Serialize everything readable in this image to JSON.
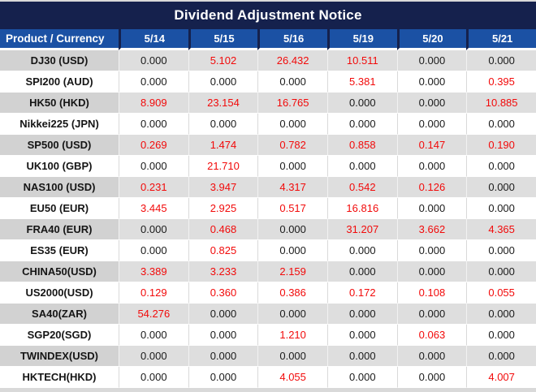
{
  "title": "Dividend Adjustment Notice",
  "table": {
    "product_header": "Product / Currency",
    "date_headers": [
      "5/14",
      "5/15",
      "5/16",
      "5/19",
      "5/20",
      "5/21"
    ],
    "rows": [
      {
        "product": "DJ30 (USD)",
        "values": [
          "0.000",
          "5.102",
          "26.432",
          "10.511",
          "0.000",
          "0.000"
        ]
      },
      {
        "product": "SPI200 (AUD)",
        "values": [
          "0.000",
          "0.000",
          "0.000",
          "5.381",
          "0.000",
          "0.395"
        ]
      },
      {
        "product": "HK50 (HKD)",
        "values": [
          "8.909",
          "23.154",
          "16.765",
          "0.000",
          "0.000",
          "10.885"
        ]
      },
      {
        "product": "Nikkei225 (JPN)",
        "values": [
          "0.000",
          "0.000",
          "0.000",
          "0.000",
          "0.000",
          "0.000"
        ]
      },
      {
        "product": "SP500 (USD)",
        "values": [
          "0.269",
          "1.474",
          "0.782",
          "0.858",
          "0.147",
          "0.190"
        ]
      },
      {
        "product": "UK100 (GBP)",
        "values": [
          "0.000",
          "21.710",
          "0.000",
          "0.000",
          "0.000",
          "0.000"
        ]
      },
      {
        "product": "NAS100 (USD)",
        "values": [
          "0.231",
          "3.947",
          "4.317",
          "0.542",
          "0.126",
          "0.000"
        ]
      },
      {
        "product": "EU50 (EUR)",
        "values": [
          "3.445",
          "2.925",
          "0.517",
          "16.816",
          "0.000",
          "0.000"
        ]
      },
      {
        "product": "FRA40 (EUR)",
        "values": [
          "0.000",
          "0.468",
          "0.000",
          "31.207",
          "3.662",
          "4.365"
        ]
      },
      {
        "product": "ES35 (EUR)",
        "values": [
          "0.000",
          "0.825",
          "0.000",
          "0.000",
          "0.000",
          "0.000"
        ]
      },
      {
        "product": "CHINA50(USD)",
        "values": [
          "3.389",
          "3.233",
          "2.159",
          "0.000",
          "0.000",
          "0.000"
        ]
      },
      {
        "product": "US2000(USD)",
        "values": [
          "0.129",
          "0.360",
          "0.386",
          "0.172",
          "0.108",
          "0.055"
        ]
      },
      {
        "product": "SA40(ZAR)",
        "values": [
          "54.276",
          "0.000",
          "0.000",
          "0.000",
          "0.000",
          "0.000"
        ]
      },
      {
        "product": "SGP20(SGD)",
        "values": [
          "0.000",
          "0.000",
          "1.210",
          "0.000",
          "0.063",
          "0.000"
        ]
      },
      {
        "product": "TWINDEX(USD)",
        "values": [
          "0.000",
          "0.000",
          "0.000",
          "0.000",
          "0.000",
          "0.000"
        ]
      },
      {
        "product": "HKTECH(HKD)",
        "values": [
          "0.000",
          "0.000",
          "4.055",
          "0.000",
          "0.000",
          "4.007"
        ]
      }
    ]
  },
  "colors": {
    "title_bg": "#15214d",
    "header_bg": "#1b51a4",
    "row_alt_bg": "#dedede",
    "row_alt_product_bg": "#d2d2d2",
    "grid_on_white": "#d9d9d9",
    "grid_on_gray": "#f2f2f2",
    "value_zero": "#1a1a1a",
    "value_nonzero": "#f20a0a",
    "footer_strip": "#d9d9d9",
    "edge_strip": "#d9d9d9"
  }
}
